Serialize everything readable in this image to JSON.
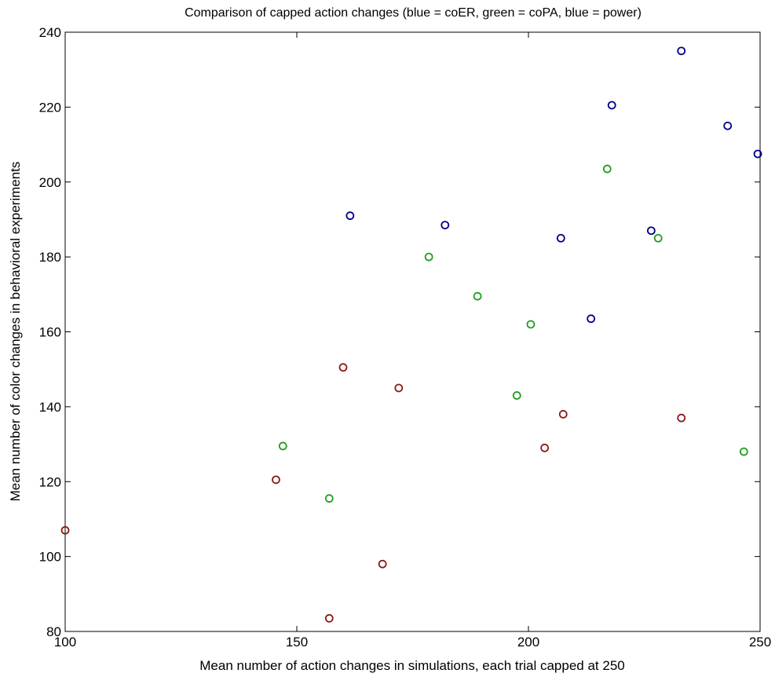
{
  "chart_data": {
    "type": "scatter",
    "title": "Comparison of capped action changes (blue = coER, green = coPA, blue = power)",
    "xlabel": "Mean number of action changes in simulations, each trial capped at 250",
    "ylabel": "Mean number of color changes in behavioral experiments",
    "xlim": [
      100,
      250
    ],
    "ylim": [
      80,
      240
    ],
    "xticks": [
      100,
      150,
      200,
      250
    ],
    "yticks": [
      80,
      100,
      120,
      140,
      160,
      180,
      200,
      220,
      240
    ],
    "grid": false,
    "marker": "circle-open",
    "series": [
      {
        "color": "#00008b",
        "points": [
          {
            "x": 161.5,
            "y": 191
          },
          {
            "x": 182,
            "y": 188.5
          },
          {
            "x": 207,
            "y": 185
          },
          {
            "x": 213.5,
            "y": 163.5
          },
          {
            "x": 218,
            "y": 220.5
          },
          {
            "x": 226.5,
            "y": 187
          },
          {
            "x": 233,
            "y": 235
          },
          {
            "x": 243,
            "y": 215
          },
          {
            "x": 249.5,
            "y": 207.5
          }
        ]
      },
      {
        "color": "#1e9e1e",
        "points": [
          {
            "x": 147,
            "y": 129.5
          },
          {
            "x": 157,
            "y": 115.5
          },
          {
            "x": 178.5,
            "y": 180
          },
          {
            "x": 189,
            "y": 169.5
          },
          {
            "x": 197.5,
            "y": 143
          },
          {
            "x": 200.5,
            "y": 162
          },
          {
            "x": 217,
            "y": 203.5
          },
          {
            "x": 228,
            "y": 185
          },
          {
            "x": 246.5,
            "y": 128
          }
        ]
      },
      {
        "color": "#8b1a1a",
        "points": [
          {
            "x": 100,
            "y": 107
          },
          {
            "x": 145.5,
            "y": 120.5
          },
          {
            "x": 157,
            "y": 83.5
          },
          {
            "x": 160,
            "y": 150.5
          },
          {
            "x": 168.5,
            "y": 98
          },
          {
            "x": 172,
            "y": 145
          },
          {
            "x": 203.5,
            "y": 129
          },
          {
            "x": 207.5,
            "y": 138
          },
          {
            "x": 233,
            "y": 137
          }
        ]
      }
    ]
  }
}
